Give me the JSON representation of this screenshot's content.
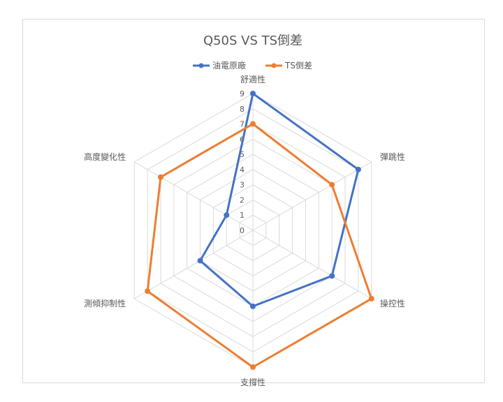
{
  "chart_data": {
    "type": "radar",
    "title": "Q50S VS TS倒差",
    "axes": [
      "舒適性",
      "彈跳性",
      "操控性",
      "支撐性",
      "測傾抑制性",
      "高度變化性"
    ],
    "ticks": [
      "0",
      "1",
      "2",
      "3",
      "4",
      "5",
      "6",
      "7",
      "8",
      "9"
    ],
    "range": [
      0,
      9
    ],
    "legend_position": "top",
    "grid": true,
    "series": [
      {
        "name": "油電原廠",
        "color": "#4472c4",
        "values": [
          9,
          8,
          6,
          5,
          4,
          2
        ]
      },
      {
        "name": "TS倒差",
        "color": "#ed7d31",
        "values": [
          7,
          6,
          9,
          9,
          8,
          7
        ]
      }
    ]
  }
}
